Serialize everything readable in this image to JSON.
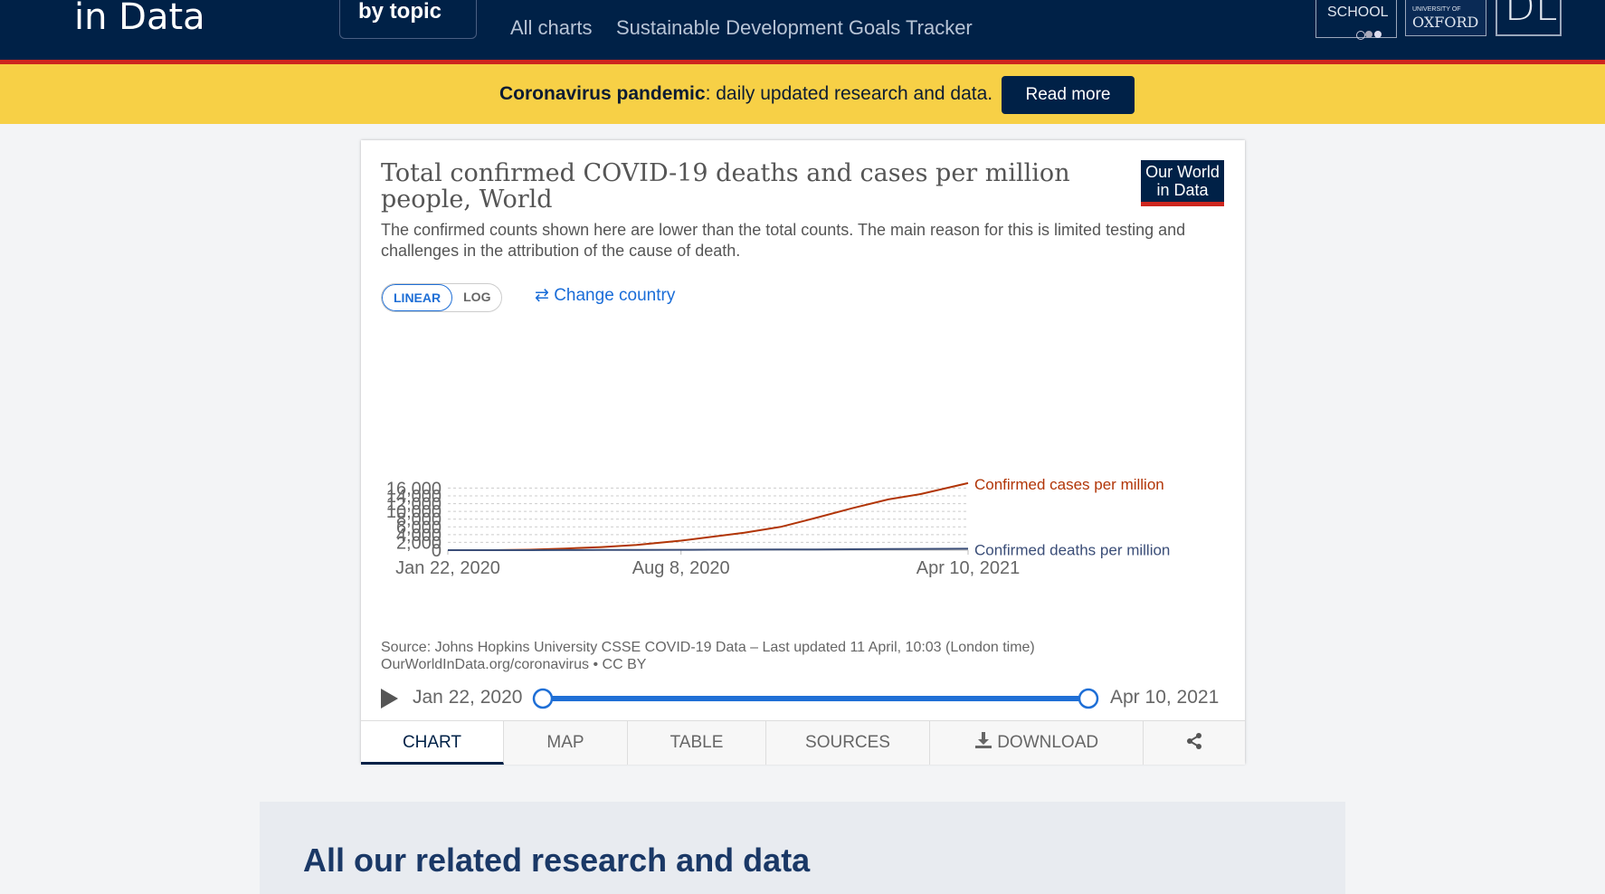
{
  "header": {
    "logo_line": "in Data",
    "topic_button": "by topic",
    "nav": [
      "All charts",
      "Sustainable Development Goals Tracker"
    ],
    "institutions": [
      "SCHOOL",
      "UNIVERSITY OF",
      "OXFORD",
      "DL"
    ]
  },
  "banner": {
    "bold": "Coronavirus pandemic",
    "text": ": daily updated research and data.",
    "button": "Read more"
  },
  "chart": {
    "title": "Total confirmed COVID-19 deaths and cases per million people, World",
    "subtitle": "The confirmed counts shown here are lower than the total counts. The main reason for this is limited testing and challenges in the attribution of the cause of death.",
    "logo_line1": "Our World",
    "logo_line2": "in Data",
    "scale_linear": "LINEAR",
    "scale_log": "LOG",
    "change_country": "Change country",
    "source_line1": "Source: Johns Hopkins University CSSE COVID-19 Data – Last updated 11 April, 10:03 (London time)",
    "source_line2": "OurWorldInData.org/coronavirus • CC BY",
    "timeline_start": "Jan 22, 2020",
    "timeline_end": "Apr 10, 2021",
    "tabs": [
      "CHART",
      "MAP",
      "TABLE",
      "SOURCES",
      "DOWNLOAD",
      ""
    ]
  },
  "chart_data": {
    "type": "line",
    "title": "Total confirmed COVID-19 deaths and cases per million people, World",
    "xlabel": "",
    "ylabel": "",
    "ylim": [
      0,
      16000
    ],
    "yticks": [
      "0",
      "2,000",
      "4,000",
      "6,000",
      "8,000",
      "10,000",
      "12,000",
      "14,000",
      "16,000"
    ],
    "xticks": [
      "Jan 22, 2020",
      "Aug 8, 2020",
      "Apr 10, 2021"
    ],
    "grid": true,
    "x": [
      "Jan 22, 2020",
      "Mar 1, 2020",
      "Apr 1, 2020",
      "May 1, 2020",
      "Jun 1, 2020",
      "Jul 1, 2020",
      "Aug 8, 2020",
      "Sep 1, 2020",
      "Oct 1, 2020",
      "Nov 1, 2020",
      "Dec 1, 2020",
      "Jan 1, 2021",
      "Feb 1, 2021",
      "Mar 1, 2021",
      "Apr 10, 2021"
    ],
    "series": [
      {
        "name": "Confirmed cases per million",
        "color": "#b13507",
        "values": [
          0,
          11,
          120,
          420,
          800,
          1350,
          2450,
          3350,
          4500,
          6000,
          8300,
          10800,
          13100,
          14500,
          17300
        ]
      },
      {
        "name": "Confirmed deaths per million",
        "color": "#3b4e78",
        "values": [
          0,
          0.4,
          6,
          30,
          48,
          66,
          93,
          111,
          132,
          160,
          192,
          234,
          280,
          327,
          370
        ]
      }
    ]
  },
  "related": {
    "heading": "All our related research and data"
  }
}
